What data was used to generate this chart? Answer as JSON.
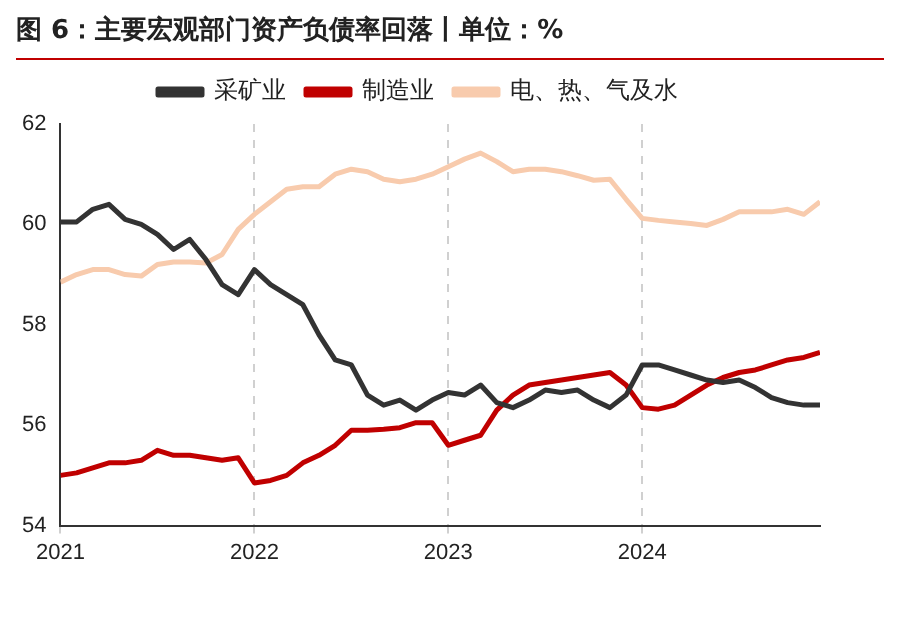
{
  "chart_data": {
    "type": "line",
    "title": "图 6：主要宏观部门资产负债率回落丨单位：%",
    "x": [
      "2021-01",
      "2021-02",
      "2021-03",
      "2021-04",
      "2021-05",
      "2021-06",
      "2021-07",
      "2021-08",
      "2021-09",
      "2021-10",
      "2021-11",
      "2021-12",
      "2022-01",
      "2022-02",
      "2022-03",
      "2022-04",
      "2022-05",
      "2022-06",
      "2022-07",
      "2022-08",
      "2022-09",
      "2022-10",
      "2022-11",
      "2022-12",
      "2023-01",
      "2023-02",
      "2023-03",
      "2023-04",
      "2023-05",
      "2023-06",
      "2023-07",
      "2023-08",
      "2023-09",
      "2023-10",
      "2023-11",
      "2023-12",
      "2024-01",
      "2024-02",
      "2024-03",
      "2024-04",
      "2024-05",
      "2024-06",
      "2024-07",
      "2024-08",
      "2024-09",
      "2024-10",
      "2024-11",
      "2024-12"
    ],
    "series": [
      {
        "name": "采矿业",
        "color": "#333333",
        "values": [
          60.05,
          60.05,
          60.3,
          60.4,
          60.1,
          60.0,
          59.8,
          59.5,
          59.7,
          59.3,
          58.8,
          58.6,
          59.1,
          58.8,
          58.6,
          58.4,
          57.8,
          57.3,
          57.2,
          56.6,
          56.4,
          56.5,
          56.3,
          56.5,
          56.65,
          56.6,
          56.8,
          56.45,
          56.35,
          56.5,
          56.7,
          56.65,
          56.7,
          56.5,
          56.35,
          56.6,
          57.2,
          57.2,
          57.1,
          57.0,
          56.9,
          56.85,
          56.9,
          56.75,
          56.55,
          56.45,
          56.4,
          56.4
        ]
      },
      {
        "name": "制造业",
        "color": "#c00000",
        "values": [
          55.0,
          55.05,
          55.15,
          55.25,
          55.25,
          55.3,
          55.5,
          55.4,
          55.4,
          55.35,
          55.3,
          55.35,
          54.85,
          54.9,
          55.0,
          55.25,
          55.4,
          55.6,
          55.9,
          55.9,
          55.92,
          55.95,
          56.05,
          56.05,
          55.6,
          55.7,
          55.8,
          56.3,
          56.6,
          56.8,
          56.85,
          56.9,
          56.95,
          57.0,
          57.05,
          56.8,
          56.35,
          56.32,
          56.4,
          56.6,
          56.8,
          56.95,
          57.05,
          57.1,
          57.2,
          57.3,
          57.35,
          57.45
        ]
      },
      {
        "name": "电、热、气及水",
        "color": "#f8cbad",
        "values": [
          58.85,
          59.0,
          59.1,
          59.1,
          59.0,
          58.97,
          59.2,
          59.25,
          59.25,
          59.23,
          59.4,
          59.9,
          60.2,
          60.45,
          60.7,
          60.75,
          60.75,
          61.0,
          61.1,
          61.05,
          60.9,
          60.85,
          60.9,
          61.0,
          61.15,
          61.3,
          61.42,
          61.25,
          61.05,
          61.1,
          61.1,
          61.05,
          60.97,
          60.88,
          60.9,
          60.5,
          60.12,
          60.08,
          60.05,
          60.02,
          59.98,
          60.1,
          60.25,
          60.25,
          60.25,
          60.3,
          60.2,
          60.45
        ]
      }
    ],
    "xlim": [
      "2021-01",
      "2024-12"
    ],
    "xticks": [
      "2021",
      "2022",
      "2023",
      "2024"
    ],
    "ylim": [
      54,
      62
    ],
    "yticks": [
      54,
      56,
      58,
      60,
      62
    ],
    "grid": "x",
    "legend": "top",
    "marker": "none",
    "line_style": "solid"
  }
}
